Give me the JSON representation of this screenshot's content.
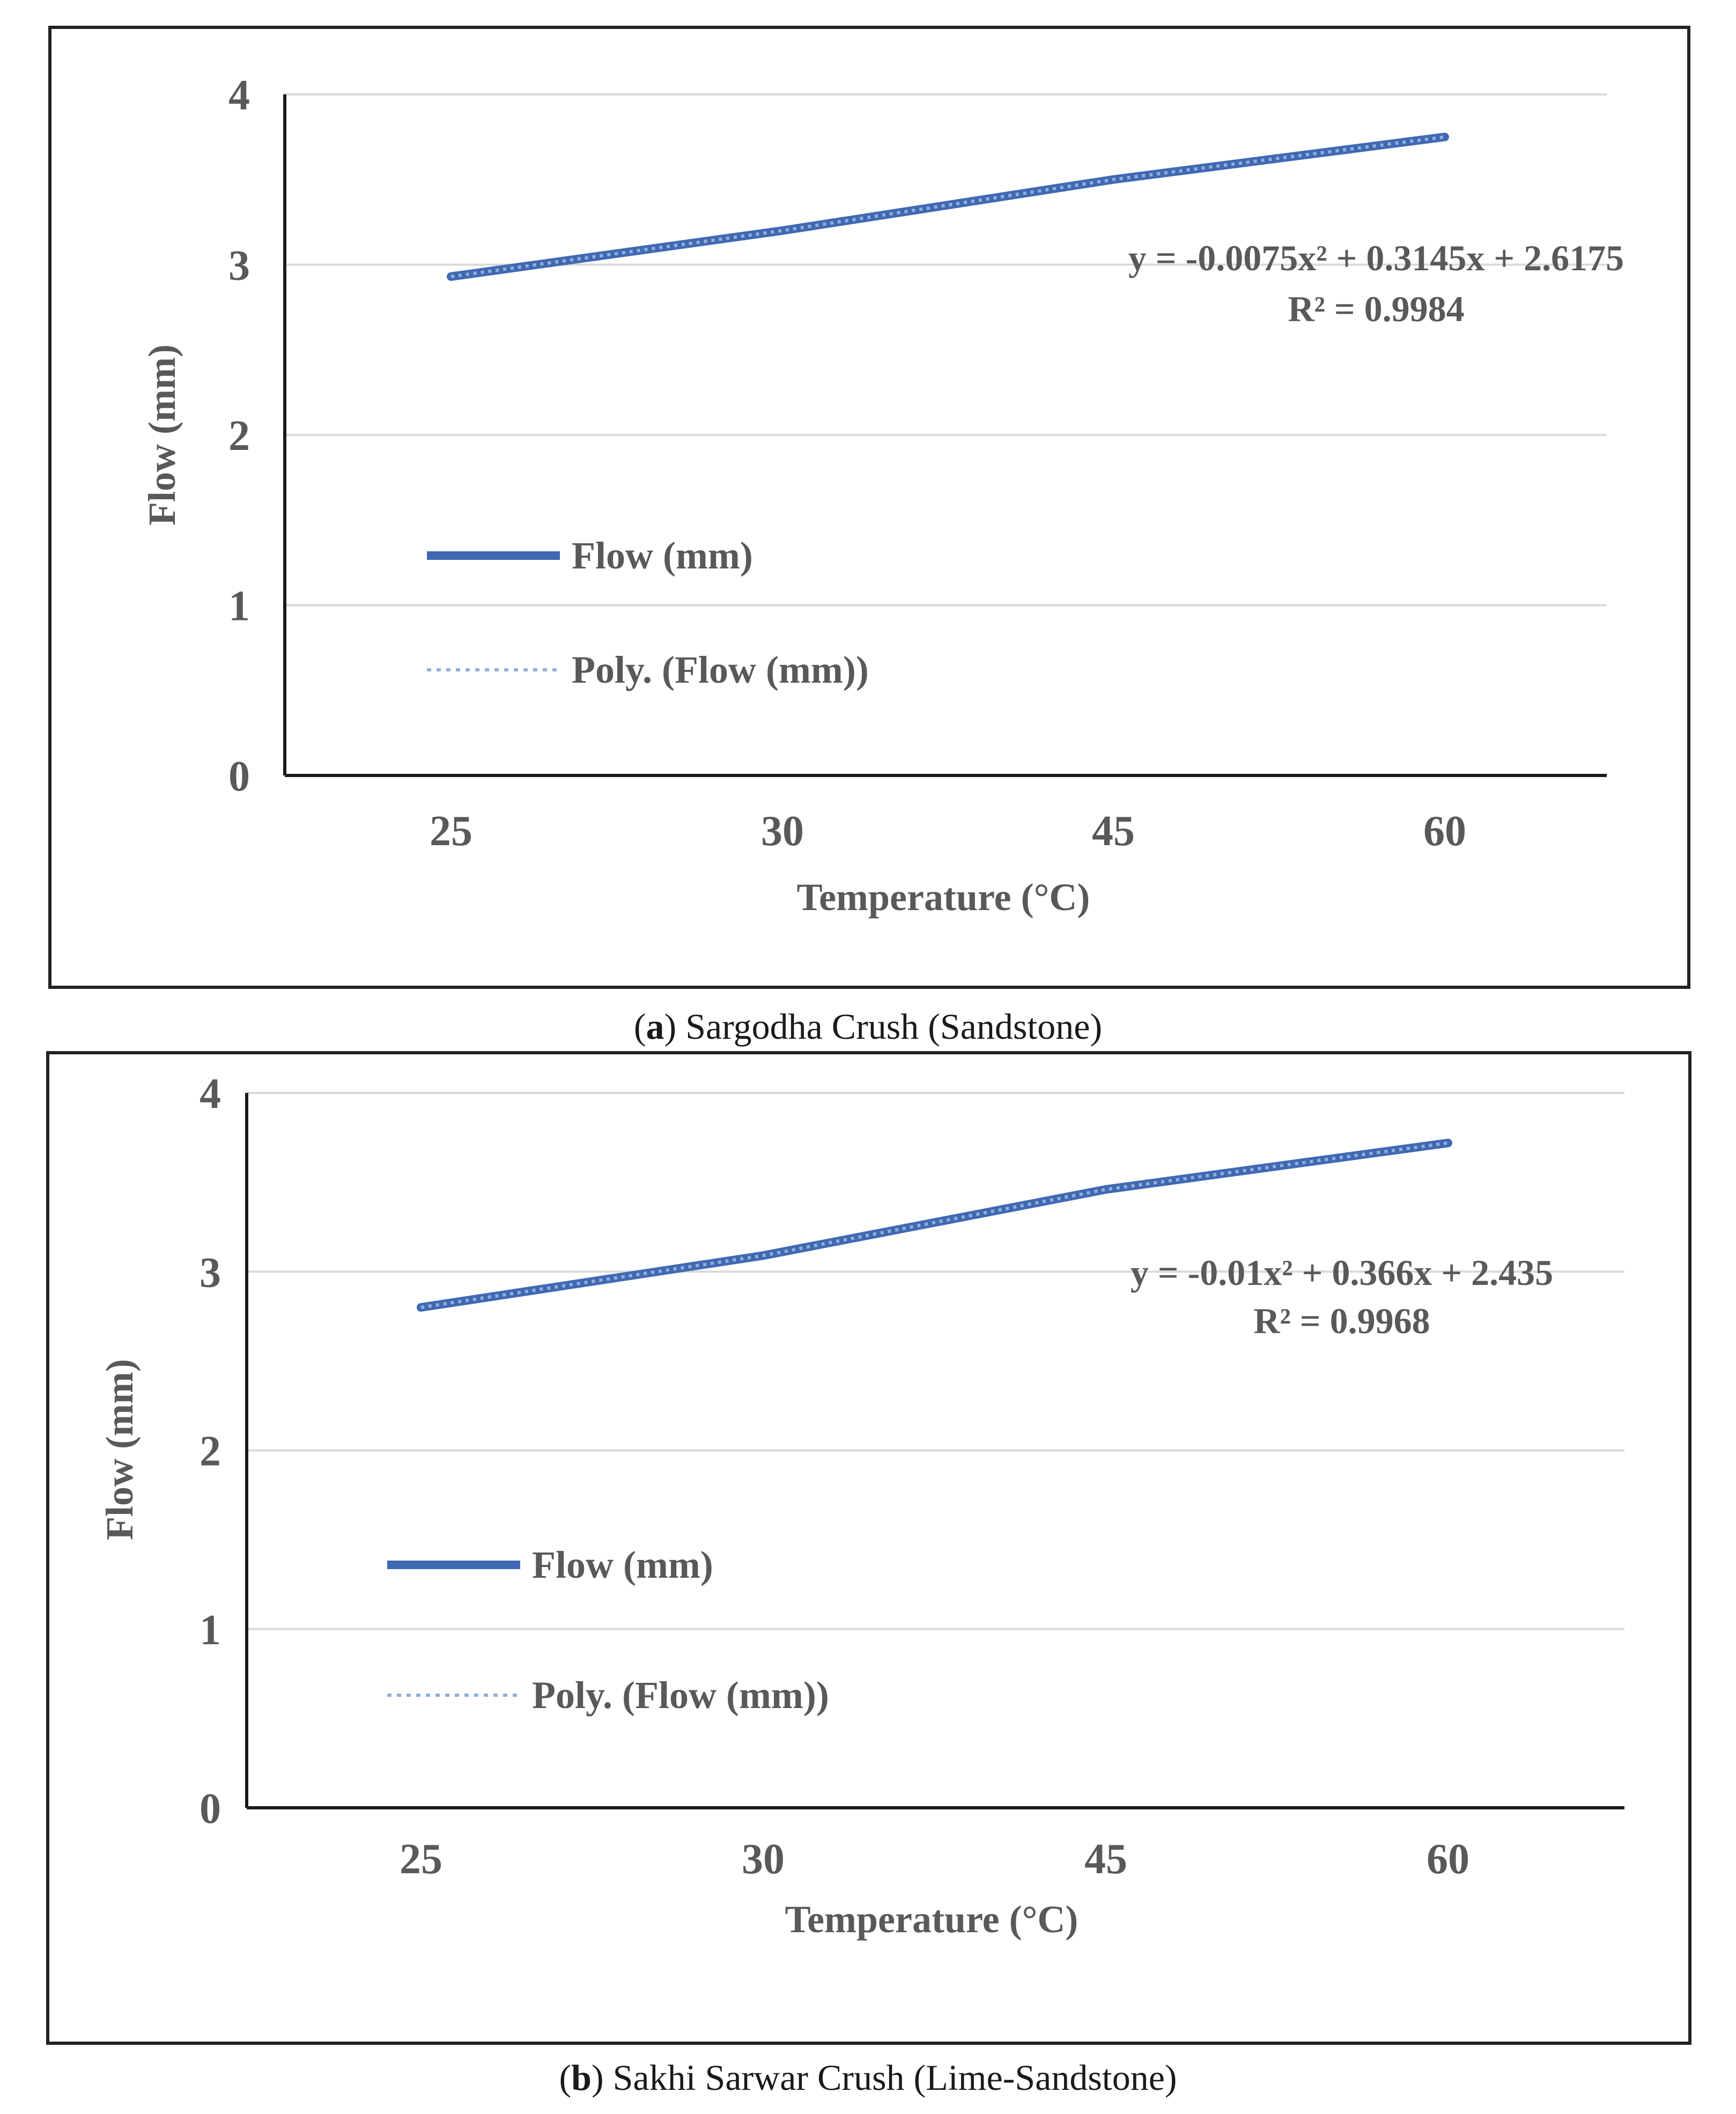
{
  "chart_data": [
    {
      "type": "line",
      "caption_letter": "a",
      "caption_text": "Sargodha Crush (Sandstone)",
      "categories": [
        "25",
        "30",
        "45",
        "60"
      ],
      "series": [
        {
          "name": "Flow (mm)",
          "values": [
            2.93,
            3.2,
            3.5,
            3.75
          ],
          "style": "solid"
        },
        {
          "name": "Poly. (Flow (mm))",
          "values": [
            2.93,
            3.2,
            3.5,
            3.75
          ],
          "style": "dotted"
        }
      ],
      "xlabel": "Temperature (°C)",
      "ylabel": "Flow (mm)",
      "ylim": [
        0,
        4
      ],
      "yticks": [
        "0",
        "1",
        "2",
        "3",
        "4"
      ],
      "grid": true,
      "trendline_equation": "y = -0.0075x² + 0.3145x + 2.6175",
      "trendline_r2": "R² = 0.9984",
      "legend_placement": "center-left",
      "colors": {
        "line": "#4169b3",
        "grid": "#d9d9d9",
        "axis": "#1a1a1a",
        "text": "#595959"
      }
    },
    {
      "type": "line",
      "caption_letter": "b",
      "caption_text": "Sakhi Sarwar Crush (Lime-Sandstone)",
      "categories": [
        "25",
        "30",
        "45",
        "60"
      ],
      "series": [
        {
          "name": "Flow (mm)",
          "values": [
            2.8,
            3.09,
            3.46,
            3.72
          ],
          "style": "solid"
        },
        {
          "name": "Poly. (Flow (mm))",
          "values": [
            2.8,
            3.09,
            3.46,
            3.72
          ],
          "style": "dotted"
        }
      ],
      "xlabel": "Temperature (°C)",
      "ylabel": "Flow (mm)",
      "ylim": [
        0,
        4
      ],
      "yticks": [
        "0",
        "1",
        "2",
        "3",
        "4"
      ],
      "grid": true,
      "trendline_equation": "y = -0.01x² + 0.366x + 2.435",
      "trendline_r2": "R² = 0.9968",
      "legend_placement": "center-left",
      "colors": {
        "line": "#4169b3",
        "grid": "#d9d9d9",
        "axis": "#1a1a1a",
        "text": "#595959"
      }
    }
  ]
}
